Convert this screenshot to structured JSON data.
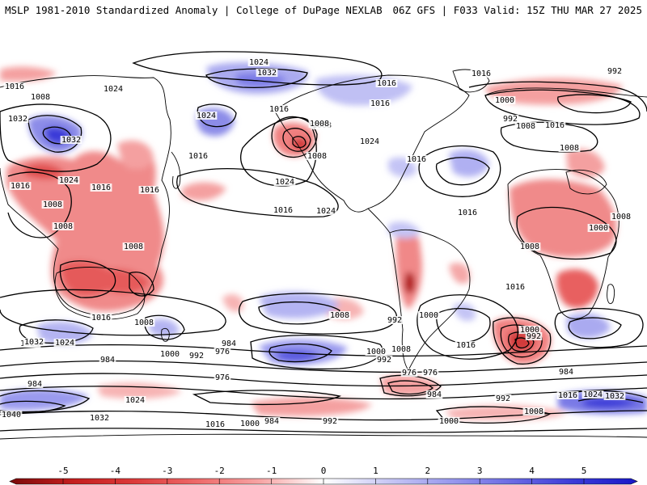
{
  "header": {
    "left": "MSLP 1981-2010 Standardized Anomaly | College of DuPage NEXLAB",
    "right": "06Z GFS | F033 Valid: 15Z THU MAR 27 2025"
  },
  "colorbar": {
    "ticks": [
      "-5",
      "-4",
      "-3",
      "-2",
      "-1",
      "0",
      "1",
      "2",
      "3",
      "4",
      "5"
    ],
    "colors": [
      "#7a0a0a",
      "#c41e1e",
      "#dd3b3b",
      "#ee6a6a",
      "#f7a5a5",
      "#ffffff",
      "#c9c9f5",
      "#9a9aee",
      "#6b6be4",
      "#3a3ad8",
      "#1818c8"
    ]
  },
  "map": {
    "isobar_labels": [
      {
        "text": "1024"
      },
      {
        "text": "1032"
      },
      {
        "text": "1016"
      },
      {
        "text": "1024"
      },
      {
        "text": "1008"
      },
      {
        "text": "1032"
      },
      {
        "text": "1032"
      },
      {
        "text": "1024"
      },
      {
        "text": "1016"
      },
      {
        "text": "1016"
      },
      {
        "text": "1008"
      },
      {
        "text": "1024"
      },
      {
        "text": "1008"
      },
      {
        "text": "1016"
      },
      {
        "text": "1008"
      },
      {
        "text": "1016"
      },
      {
        "text": "1024"
      },
      {
        "text": "1016"
      },
      {
        "text": "1008"
      },
      {
        "text": "1008"
      },
      {
        "text": "1008"
      },
      {
        "text": "1016"
      },
      {
        "text": "1024"
      },
      {
        "text": "1016"
      },
      {
        "text": "1024"
      },
      {
        "text": "1016"
      },
      {
        "text": "1016"
      },
      {
        "text": "1016"
      },
      {
        "text": "1016"
      },
      {
        "text": "992"
      },
      {
        "text": "1000"
      },
      {
        "text": "992"
      },
      {
        "text": "1008"
      },
      {
        "text": "1016"
      },
      {
        "text": "1008"
      },
      {
        "text": "1008"
      },
      {
        "text": "1000"
      },
      {
        "text": "1008"
      },
      {
        "text": "1016"
      },
      {
        "text": "1016"
      },
      {
        "text": "1008"
      },
      {
        "text": "1024"
      },
      {
        "text": "1008"
      },
      {
        "text": "1000"
      },
      {
        "text": "992"
      },
      {
        "text": "984"
      },
      {
        "text": "976"
      },
      {
        "text": "1000"
      },
      {
        "text": "992"
      },
      {
        "text": "1008"
      },
      {
        "text": "1016"
      },
      {
        "text": "1000"
      },
      {
        "text": "992"
      },
      {
        "text": "976"
      },
      {
        "text": "984"
      },
      {
        "text": "984"
      },
      {
        "text": "1000"
      },
      {
        "text": "992"
      },
      {
        "text": "984"
      },
      {
        "text": "976"
      },
      {
        "text": "1016"
      },
      {
        "text": "1024"
      },
      {
        "text": "1032"
      },
      {
        "text": "992"
      },
      {
        "text": "1008"
      },
      {
        "text": "1040"
      },
      {
        "text": "1032"
      },
      {
        "text": "1024"
      },
      {
        "text": "1016"
      },
      {
        "text": "1000"
      },
      {
        "text": "984"
      },
      {
        "text": "992"
      },
      {
        "text": "1000"
      },
      {
        "text": "984"
      },
      {
        "text": "1024"
      },
      {
        "text": "1032"
      },
      {
        "text": "976"
      }
    ]
  }
}
